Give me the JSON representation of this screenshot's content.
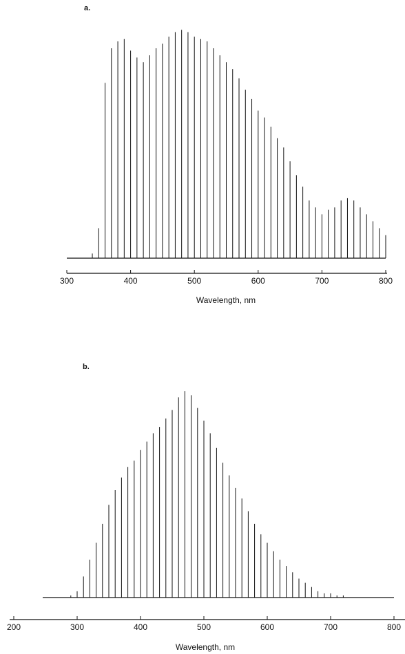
{
  "chart_data": [
    {
      "type": "spectrum",
      "title": "a.",
      "x_label": "Wavelength, nm",
      "color": "#111111",
      "x": [
        340,
        350,
        360,
        370,
        380,
        390,
        400,
        410,
        420,
        430,
        440,
        450,
        460,
        470,
        480,
        490,
        500,
        510,
        520,
        530,
        540,
        550,
        560,
        570,
        580,
        590,
        600,
        610,
        620,
        630,
        640,
        650,
        660,
        670,
        680,
        690,
        700,
        710,
        720,
        730,
        740,
        750,
        760,
        770,
        780,
        790,
        800
      ],
      "values": [
        2,
        13,
        76,
        91,
        94,
        95,
        90,
        87,
        85,
        88,
        91,
        93,
        96,
        98,
        99,
        98,
        96,
        95,
        94,
        91,
        88,
        85,
        82,
        78,
        73,
        69,
        64,
        61,
        57,
        52,
        48,
        42,
        36,
        31,
        25,
        22,
        19,
        21,
        22,
        25,
        26,
        25,
        22,
        19,
        16,
        13,
        10
      ],
      "xlim": [
        300,
        800
      ],
      "xticks": [
        300,
        400,
        500,
        600,
        700,
        800
      ],
      "ylim": [
        0,
        100
      ]
    },
    {
      "type": "spectrum",
      "title": "b.",
      "x_label": "Wavelength, nm",
      "color": "#111111",
      "x": [
        250,
        260,
        270,
        280,
        290,
        300,
        310,
        320,
        330,
        340,
        350,
        360,
        370,
        380,
        390,
        400,
        410,
        420,
        430,
        440,
        450,
        460,
        470,
        480,
        490,
        500,
        510,
        520,
        530,
        540,
        550,
        560,
        570,
        580,
        590,
        600,
        610,
        620,
        630,
        640,
        650,
        660,
        670,
        680,
        690,
        700,
        710,
        720,
        730,
        740,
        750
      ],
      "values": [
        0,
        0,
        0,
        0,
        1,
        3,
        10,
        18,
        26,
        35,
        44,
        51,
        57,
        62,
        65,
        70,
        74,
        78,
        81,
        85,
        89,
        95,
        98,
        96,
        90,
        84,
        78,
        71,
        64,
        58,
        52,
        47,
        41,
        35,
        30,
        26,
        22,
        18,
        15,
        12,
        9,
        7,
        5,
        3,
        2,
        2,
        1,
        1,
        0,
        0,
        0
      ],
      "xlim": [
        200,
        800
      ],
      "xticks": [
        200,
        300,
        400,
        500,
        600,
        700,
        800
      ],
      "ylim": [
        0,
        100
      ]
    }
  ]
}
